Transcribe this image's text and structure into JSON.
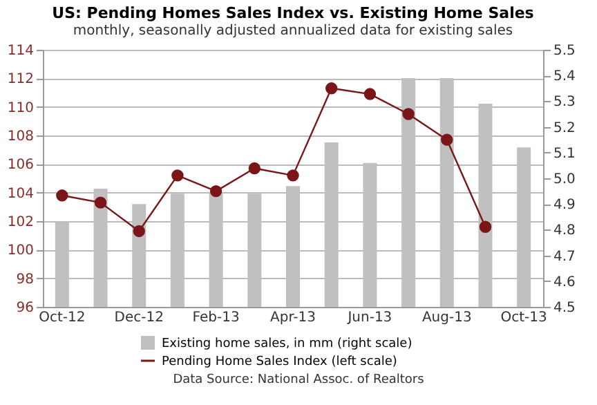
{
  "chart_data": {
    "type": "bar",
    "title": "US: Pending Homes Sales Index  vs.  Existing Home Sales",
    "subtitle": "monthly, seasonally adjusted annualized data for existing sales",
    "categories": [
      "Oct-12",
      null,
      "Dec-12",
      null,
      "Feb-13",
      null,
      "Apr-13",
      null,
      "Jun-13",
      null,
      "Aug-13",
      null,
      "Oct-13"
    ],
    "series": [
      {
        "name": "Existing home sales, in mm (right scale)",
        "axis": "y2",
        "color": "#c0c0c0",
        "values": [
          4.83,
          4.96,
          4.9,
          4.94,
          4.94,
          4.94,
          4.97,
          5.14,
          5.06,
          5.39,
          5.39,
          5.29,
          5.12
        ]
      },
      {
        "name": "Pending Home Sales Index (left scale)",
        "type": "line",
        "color": "#7a1518",
        "values": [
          103.8,
          103.3,
          101.3,
          105.2,
          104.1,
          105.7,
          105.2,
          111.3,
          110.9,
          109.5,
          107.7,
          101.6,
          null
        ]
      }
    ],
    "ylim": [
      96,
      114
    ],
    "yticks": [
      96,
      98,
      100,
      102,
      104,
      106,
      108,
      110,
      112,
      114
    ],
    "y2lim": [
      4.5,
      5.5
    ],
    "y2ticks": [
      {
        "value": 4.5,
        "label": "4.5"
      },
      {
        "value": 4.6,
        "label": "4.6"
      },
      {
        "value": 4.7,
        "label": "4.7"
      },
      {
        "value": 4.8,
        "label": "4.8"
      },
      {
        "value": 4.9,
        "label": "4.9"
      },
      {
        "value": 5.0,
        "label": "5.0"
      },
      {
        "value": 5.1,
        "label": "5.1"
      },
      {
        "value": 5.2,
        "label": "5.2"
      },
      {
        "value": 5.3,
        "label": "5.3"
      },
      {
        "value": 5.4,
        "label": "5.4"
      },
      {
        "value": 5.5,
        "label": "5.5"
      }
    ],
    "grid": "y",
    "legend": "bottom",
    "marker": "circle",
    "line_style": "solid",
    "annotations": [
      "Data Source: National Assoc. of Realtors"
    ]
  }
}
